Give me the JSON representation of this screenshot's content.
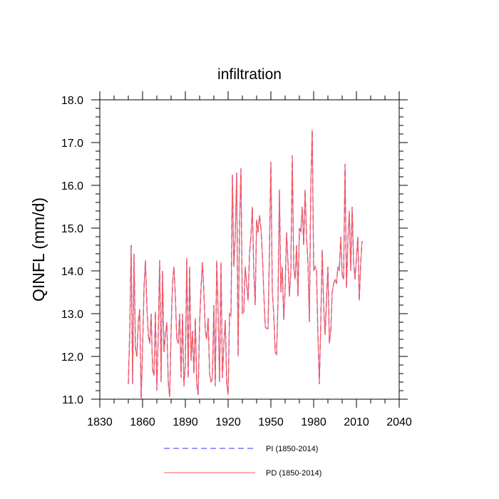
{
  "chart_data": {
    "type": "line",
    "title": "infiltration",
    "xlabel": "",
    "ylabel": "QINFL  (mm/d)",
    "xlim": [
      1830,
      2040
    ],
    "ylim": [
      11.0,
      18.0
    ],
    "xticks": [
      1830,
      1860,
      1890,
      1920,
      1950,
      1980,
      2010,
      2040
    ],
    "yticks": [
      11.0,
      12.0,
      13.0,
      14.0,
      15.0,
      16.0,
      17.0,
      18.0
    ],
    "xtick_labels": [
      "1830",
      "1860",
      "1890",
      "1920",
      "1950",
      "1980",
      "2010",
      "2040"
    ],
    "ytick_labels": [
      "11.0",
      "12.0",
      "13.0",
      "14.0",
      "15.0",
      "16.0",
      "17.0",
      "18.0"
    ],
    "grid": false,
    "legend_position": "bottom",
    "x": [
      1850,
      1851,
      1852,
      1853,
      1854,
      1855,
      1856,
      1857,
      1858,
      1859,
      1860,
      1861,
      1862,
      1863,
      1864,
      1865,
      1866,
      1867,
      1868,
      1869,
      1870,
      1871,
      1872,
      1873,
      1874,
      1875,
      1876,
      1877,
      1878,
      1879,
      1880,
      1881,
      1882,
      1883,
      1884,
      1885,
      1886,
      1887,
      1888,
      1889,
      1890,
      1891,
      1892,
      1893,
      1894,
      1895,
      1896,
      1897,
      1898,
      1899,
      1900,
      1901,
      1902,
      1903,
      1904,
      1905,
      1906,
      1907,
      1908,
      1909,
      1910,
      1911,
      1912,
      1913,
      1914,
      1915,
      1916,
      1917,
      1918,
      1919,
      1920,
      1921,
      1922,
      1923,
      1924,
      1925,
      1926,
      1927,
      1928,
      1929,
      1930,
      1931,
      1932,
      1933,
      1934,
      1935,
      1936,
      1937,
      1938,
      1939,
      1940,
      1941,
      1942,
      1943,
      1944,
      1945,
      1946,
      1947,
      1948,
      1949,
      1950,
      1951,
      1952,
      1953,
      1954,
      1955,
      1956,
      1957,
      1958,
      1959,
      1960,
      1961,
      1962,
      1963,
      1964,
      1965,
      1966,
      1967,
      1968,
      1969,
      1970,
      1971,
      1972,
      1973,
      1974,
      1975,
      1976,
      1977,
      1978,
      1979,
      1980,
      1981,
      1982,
      1983,
      1984,
      1985,
      1986,
      1987,
      1988,
      1989,
      1990,
      1991,
      1992,
      1993,
      1994,
      1995,
      1996,
      1997,
      1998,
      1999,
      2000,
      2001,
      2002,
      2003,
      2004,
      2005,
      2006,
      2007,
      2008,
      2009,
      2010,
      2011,
      2012,
      2013,
      2014
    ],
    "series": [
      {
        "name": "PI (1850-2014)",
        "color": "#3333ff",
        "style": "dashed",
        "values": [
          11.35,
          12.6,
          14.6,
          11.35,
          14.4,
          12.2,
          12.0,
          12.8,
          13.1,
          11.0,
          12.2,
          13.6,
          14.25,
          13.2,
          12.5,
          12.3,
          13.0,
          11.7,
          11.55,
          13.05,
          11.2,
          12.5,
          14.25,
          11.4,
          14.0,
          12.1,
          12.5,
          12.8,
          11.4,
          11.05,
          12.6,
          13.7,
          14.1,
          13.4,
          12.4,
          12.3,
          13.0,
          11.5,
          13.0,
          11.3,
          11.8,
          14.3,
          11.5,
          14.1,
          11.9,
          12.6,
          11.6,
          12.9,
          11.35,
          11.1,
          12.8,
          13.6,
          14.2,
          13.5,
          12.6,
          12.4,
          12.9,
          11.6,
          11.4,
          11.5,
          13.2,
          11.3,
          14.25,
          13.0,
          11.4,
          14.2,
          11.5,
          12.3,
          12.85,
          11.4,
          11.1,
          13.0,
          12.95,
          16.25,
          14.1,
          14.8,
          16.3,
          12.0,
          15.0,
          16.4,
          13.0,
          13.05,
          14.1,
          13.7,
          13.3,
          14.4,
          14.8,
          15.5,
          14.0,
          13.2,
          15.2,
          14.9,
          15.3,
          15.0,
          14.4,
          13.5,
          12.7,
          12.65,
          12.65,
          14.5,
          16.55,
          13.5,
          13.0,
          12.1,
          12.05,
          13.3,
          15.9,
          13.5,
          14.1,
          12.85,
          13.6,
          14.9,
          14.2,
          13.4,
          14.0,
          16.7,
          14.1,
          13.8,
          14.6,
          13.4,
          15.0,
          14.9,
          15.5,
          14.6,
          15.9,
          14.8,
          14.2,
          12.8,
          16.0,
          17.3,
          14.0,
          14.1,
          14.0,
          12.5,
          11.35,
          12.8,
          14.5,
          13.2,
          12.5,
          13.3,
          14.1,
          12.3,
          12.6,
          13.5,
          13.7,
          13.8,
          13.7,
          14.1,
          14.0,
          14.8,
          13.9,
          13.8,
          16.5,
          13.6,
          14.7,
          15.4,
          14.0,
          15.5,
          14.2,
          13.8,
          14.3,
          14.8,
          13.3,
          14.2,
          14.7
        ]
      },
      {
        "name": "PD (1850-2014)",
        "color": "#ff5a5a",
        "style": "solid",
        "values": [
          11.35,
          12.6,
          14.55,
          11.35,
          14.4,
          12.2,
          12.0,
          12.8,
          13.1,
          11.0,
          12.2,
          13.6,
          14.25,
          13.2,
          12.5,
          12.3,
          13.0,
          11.7,
          11.55,
          13.05,
          11.2,
          12.5,
          14.25,
          11.4,
          14.0,
          12.1,
          12.5,
          12.8,
          11.4,
          11.05,
          12.6,
          13.7,
          14.1,
          13.4,
          12.4,
          12.3,
          13.0,
          11.5,
          13.0,
          11.3,
          11.8,
          14.3,
          11.5,
          14.1,
          11.9,
          12.6,
          11.6,
          12.9,
          11.35,
          11.1,
          12.8,
          13.6,
          14.2,
          13.5,
          12.6,
          12.4,
          12.9,
          11.6,
          11.4,
          11.5,
          13.2,
          11.3,
          14.25,
          13.0,
          11.4,
          14.2,
          11.5,
          12.3,
          12.85,
          11.4,
          11.1,
          13.0,
          12.95,
          16.25,
          14.1,
          14.8,
          16.3,
          12.0,
          15.0,
          16.4,
          13.0,
          13.05,
          14.1,
          13.7,
          13.3,
          14.4,
          14.8,
          15.5,
          14.0,
          13.2,
          15.2,
          14.9,
          15.3,
          15.0,
          14.4,
          13.5,
          12.7,
          12.65,
          12.65,
          14.5,
          16.55,
          13.5,
          13.0,
          12.1,
          12.05,
          13.3,
          15.9,
          13.5,
          14.1,
          12.85,
          13.6,
          14.9,
          14.2,
          13.4,
          14.0,
          16.7,
          14.1,
          13.8,
          14.6,
          13.4,
          15.0,
          14.9,
          15.5,
          14.6,
          15.9,
          14.8,
          14.2,
          12.8,
          16.0,
          17.3,
          14.0,
          14.1,
          14.0,
          12.5,
          11.35,
          12.8,
          14.5,
          13.2,
          12.5,
          13.3,
          14.1,
          12.3,
          12.6,
          13.5,
          13.7,
          13.8,
          13.7,
          14.1,
          14.0,
          14.8,
          13.9,
          13.8,
          16.5,
          13.6,
          14.7,
          15.4,
          14.0,
          15.5,
          14.2,
          13.8,
          14.3,
          14.8,
          13.3,
          14.2,
          14.7
        ]
      }
    ]
  }
}
